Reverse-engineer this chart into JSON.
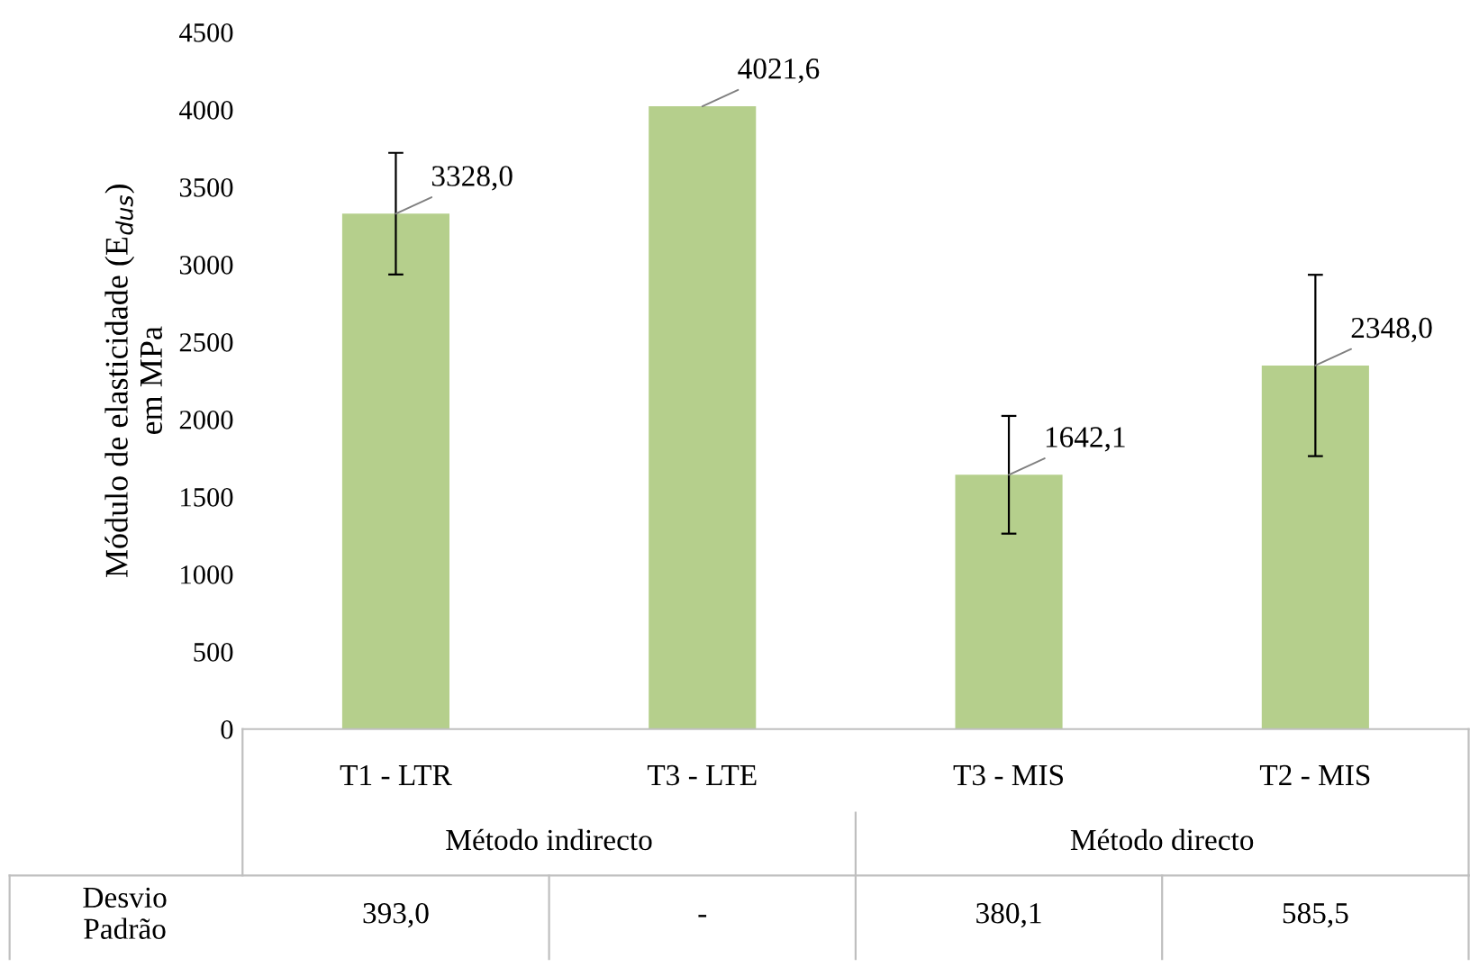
{
  "chart_data": {
    "type": "bar",
    "ylabel": "Módulo de elasticidade (E$_{dus}$)\nem MPa",
    "categories": [
      "T1 - LTR",
      "T3 - LTE",
      "T3 - MIS",
      "T2 - MIS"
    ],
    "values": [
      3328.0,
      4021.6,
      1642.1,
      2348.0
    ],
    "errors": [
      393.0,
      null,
      380.1,
      585.5
    ],
    "value_labels": [
      "3328,0",
      "4021,6",
      "1642,1",
      "2348,0"
    ],
    "color": "#b5cf8c",
    "ylim": [
      0,
      4500
    ],
    "yticks": [
      0,
      500,
      1000,
      1500,
      2000,
      2500,
      3000,
      3500,
      4000,
      4500
    ],
    "grid": false,
    "legend": false,
    "annotations": [
      "Método indirecto",
      "Método directo",
      "Desvio\nPadrão",
      "393,0",
      "-",
      "380,1",
      "585,5"
    ]
  }
}
